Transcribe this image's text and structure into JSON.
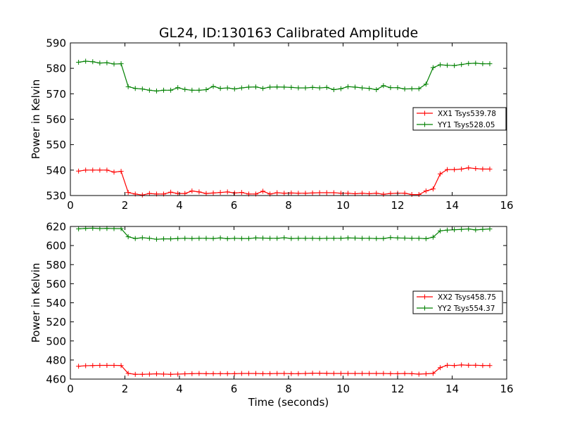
{
  "figure": {
    "title": "GL24, ID:130163 Calibrated Amplitude"
  },
  "chart_data": [
    {
      "type": "line",
      "title": "GL24, ID:130163 Calibrated Amplitude",
      "xlabel": "",
      "ylabel": "Power in Kelvin",
      "xlim": [
        0,
        16
      ],
      "ylim": [
        530,
        590
      ],
      "xticks": [
        "0",
        "2",
        "4",
        "6",
        "8",
        "10",
        "12",
        "14",
        "16"
      ],
      "yticks": [
        "530",
        "540",
        "550",
        "560",
        "570",
        "580",
        "590"
      ],
      "legend_position": "center-right",
      "grid": false,
      "x": [
        0.3,
        0.56,
        0.82,
        1.08,
        1.34,
        1.6,
        1.86,
        2.12,
        2.38,
        2.64,
        2.9,
        3.16,
        3.42,
        3.68,
        3.94,
        4.2,
        4.46,
        4.72,
        4.98,
        5.24,
        5.5,
        5.76,
        6.02,
        6.28,
        6.54,
        6.8,
        7.06,
        7.32,
        7.58,
        7.84,
        8.1,
        8.36,
        8.62,
        8.88,
        9.14,
        9.4,
        9.66,
        9.92,
        10.18,
        10.44,
        10.7,
        10.96,
        11.22,
        11.48,
        11.74,
        12.0,
        12.26,
        12.52,
        12.78,
        13.04,
        13.3,
        13.56,
        13.82,
        14.08,
        14.34,
        14.6,
        14.86,
        15.12,
        15.38
      ],
      "series": [
        {
          "name": "XX1 Tsys539.78",
          "color": "#ff0000",
          "values": [
            539.6,
            540.0,
            540.0,
            540.0,
            540.0,
            539.2,
            539.5,
            531.2,
            530.6,
            530.2,
            530.8,
            530.6,
            530.6,
            531.3,
            530.8,
            530.8,
            531.8,
            531.4,
            530.8,
            531.0,
            531.2,
            531.4,
            531.0,
            531.2,
            530.6,
            530.6,
            531.7,
            530.6,
            531.1,
            530.9,
            531.0,
            530.9,
            530.9,
            531.0,
            531.1,
            531.1,
            531.1,
            530.9,
            530.9,
            530.7,
            530.9,
            530.7,
            530.9,
            530.5,
            530.8,
            530.9,
            530.9,
            530.4,
            530.4,
            531.8,
            532.6,
            538.5,
            540.2,
            540.2,
            540.4,
            540.9,
            540.6,
            540.4,
            540.4
          ]
        },
        {
          "name": "YY1 Tsys528.05",
          "color": "#008000",
          "values": [
            582.4,
            582.8,
            582.6,
            582.1,
            582.2,
            581.7,
            581.8,
            572.8,
            572.1,
            571.9,
            571.4,
            571.1,
            571.4,
            571.4,
            572.4,
            571.7,
            571.4,
            571.4,
            571.6,
            572.9,
            572.1,
            572.3,
            571.9,
            572.3,
            572.6,
            572.7,
            572.1,
            572.6,
            572.7,
            572.6,
            572.5,
            572.3,
            572.3,
            572.5,
            572.3,
            572.5,
            571.6,
            572.0,
            572.8,
            572.6,
            572.3,
            572.1,
            571.6,
            573.2,
            572.4,
            572.4,
            571.9,
            572.0,
            572.0,
            573.8,
            580.3,
            581.4,
            581.2,
            581.1,
            581.5,
            581.9,
            582.0,
            581.8,
            581.8
          ]
        }
      ]
    },
    {
      "type": "line",
      "title": "",
      "xlabel": "Time (seconds)",
      "ylabel": "Power in Kelvin",
      "xlim": [
        0,
        16
      ],
      "ylim": [
        460,
        620
      ],
      "xticks": [
        "0",
        "2",
        "4",
        "6",
        "8",
        "10",
        "12",
        "14",
        "16"
      ],
      "yticks": [
        "460",
        "480",
        "500",
        "520",
        "540",
        "560",
        "580",
        "600",
        "620"
      ],
      "legend_position": "center-right",
      "grid": false,
      "x": [
        0.3,
        0.56,
        0.82,
        1.08,
        1.34,
        1.6,
        1.86,
        2.12,
        2.38,
        2.64,
        2.9,
        3.16,
        3.42,
        3.68,
        3.94,
        4.2,
        4.46,
        4.72,
        4.98,
        5.24,
        5.5,
        5.76,
        6.02,
        6.28,
        6.54,
        6.8,
        7.06,
        7.32,
        7.58,
        7.84,
        8.1,
        8.36,
        8.62,
        8.88,
        9.14,
        9.4,
        9.66,
        9.92,
        10.18,
        10.44,
        10.7,
        10.96,
        11.22,
        11.48,
        11.74,
        12.0,
        12.26,
        12.52,
        12.78,
        13.04,
        13.3,
        13.56,
        13.82,
        14.08,
        14.34,
        14.6,
        14.86,
        15.12,
        15.38
      ],
      "series": [
        {
          "name": "XX2 Tsys458.75",
          "color": "#ff0000",
          "values": [
            473.5,
            474.0,
            474.2,
            474.4,
            474.4,
            474.4,
            474.2,
            466.0,
            465.0,
            465.0,
            465.2,
            465.5,
            465.2,
            465.0,
            465.2,
            465.5,
            465.7,
            465.9,
            465.7,
            465.7,
            465.7,
            465.7,
            465.7,
            465.9,
            465.9,
            465.9,
            465.7,
            465.7,
            465.9,
            465.9,
            465.7,
            465.7,
            465.9,
            466.2,
            466.2,
            466.0,
            465.9,
            465.9,
            465.9,
            465.9,
            465.9,
            465.9,
            465.9,
            465.9,
            465.7,
            465.7,
            465.9,
            465.7,
            465.2,
            465.5,
            466.0,
            472.0,
            474.5,
            474.2,
            474.8,
            474.5,
            474.5,
            474.2,
            474.2
          ]
        },
        {
          "name": "YY2 Tsys554.37",
          "color": "#008000",
          "values": [
            617.5,
            618.0,
            618.2,
            617.8,
            618.0,
            617.8,
            617.8,
            609.2,
            607.4,
            608.2,
            607.6,
            606.6,
            607.0,
            607.0,
            607.4,
            607.6,
            607.4,
            607.6,
            607.6,
            607.4,
            608.0,
            607.2,
            607.6,
            607.4,
            607.4,
            608.0,
            607.8,
            607.6,
            607.6,
            608.2,
            607.4,
            607.6,
            607.6,
            607.6,
            607.4,
            607.6,
            607.6,
            607.6,
            608.0,
            607.8,
            607.6,
            607.6,
            607.4,
            607.4,
            608.4,
            608.0,
            607.8,
            607.6,
            607.6,
            607.2,
            608.8,
            615.4,
            616.2,
            616.6,
            617.0,
            617.4,
            616.4,
            617.0,
            617.4
          ]
        }
      ]
    }
  ]
}
